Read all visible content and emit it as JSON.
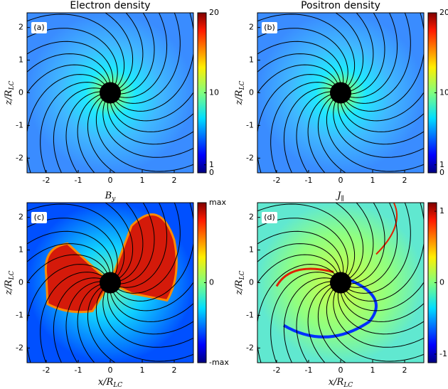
{
  "chart_data": [
    {
      "type": "heatmap",
      "title": "Electron density",
      "panel_label": "(a)",
      "ylabel": "z/R",
      "ylabel_sub": "LC",
      "xlim": [
        -2.6,
        2.6
      ],
      "ylim": [
        -2.45,
        2.45
      ],
      "xticks": [
        -2,
        -1,
        0,
        1,
        2
      ],
      "yticks": [
        -2,
        -1,
        0,
        1,
        2
      ],
      "clim": [
        0,
        20
      ],
      "cticks": [
        0,
        1,
        10,
        20
      ]
    },
    {
      "type": "heatmap",
      "title": "Positron density",
      "panel_label": "(b)",
      "ylabel": "z/R",
      "ylabel_sub": "LC",
      "xlim": [
        -2.6,
        2.6
      ],
      "ylim": [
        -2.45,
        2.45
      ],
      "xticks": [
        -2,
        -1,
        0,
        1,
        2
      ],
      "yticks": [
        -2,
        -1,
        0,
        1,
        2
      ],
      "clim": [
        0,
        20
      ],
      "cticks": [
        0,
        1,
        10,
        20
      ]
    },
    {
      "type": "heatmap",
      "title": "B",
      "title_sub": "y",
      "panel_label": "(c)",
      "xlabel": "x/R",
      "xlabel_sub": "LC",
      "ylabel": "z/R",
      "ylabel_sub": "LC",
      "xlim": [
        -2.6,
        2.6
      ],
      "ylim": [
        -2.45,
        2.45
      ],
      "xticks": [
        -2,
        -1,
        0,
        1,
        2
      ],
      "yticks": [
        -2,
        -1,
        0,
        1,
        2
      ],
      "clim": [
        -1,
        1
      ],
      "cticks": [
        {
          "value": -1,
          "label": "-max"
        },
        0,
        {
          "value": 1,
          "label": "max"
        }
      ]
    },
    {
      "type": "heatmap",
      "title": "J",
      "title_sub": "∥",
      "panel_label": "(d)",
      "xlabel": "x/R",
      "xlabel_sub": "LC",
      "ylabel": "z/R",
      "ylabel_sub": "LC",
      "xlim": [
        -2.6,
        2.6
      ],
      "ylim": [
        -2.45,
        2.45
      ],
      "xticks": [
        -2,
        -1,
        0,
        1,
        2
      ],
      "yticks": [
        -2,
        -1,
        0,
        1,
        2
      ],
      "clim": [
        -1.12,
        1.12
      ],
      "cticks": [
        -1,
        0,
        1
      ]
    }
  ]
}
